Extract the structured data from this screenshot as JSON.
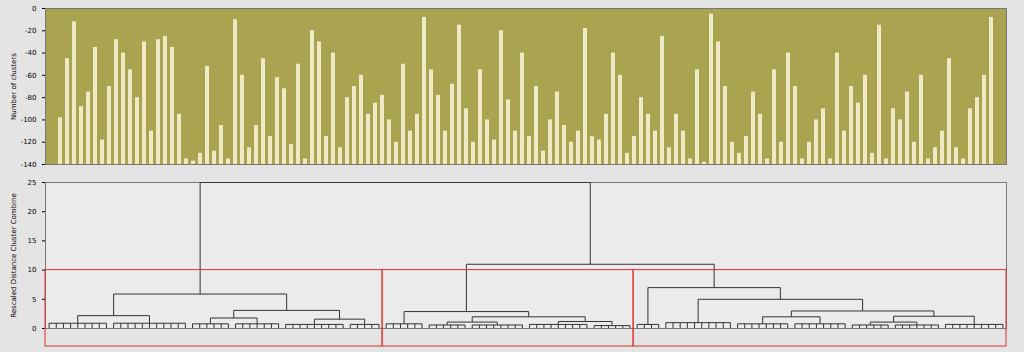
{
  "chart_data": [
    {
      "type": "bar",
      "y_label": "Number of clusters",
      "values": [
        -98,
        -45,
        -12,
        -88,
        -75,
        -35,
        -118,
        -70,
        -28,
        -40,
        -55,
        -80,
        -30,
        -110,
        -28,
        -25,
        -35,
        -95,
        -135,
        -137,
        -130,
        -52,
        -128,
        -105,
        -135,
        -10,
        -60,
        -125,
        -105,
        -45,
        -115,
        -62,
        -72,
        -122,
        -50,
        -135,
        -20,
        -30,
        -115,
        -40,
        -125,
        -80,
        -70,
        -60,
        -95,
        -85,
        -78,
        -100,
        -120,
        -50,
        -110,
        -95,
        -8,
        -55,
        -78,
        -110,
        -68,
        -15,
        -90,
        -120,
        -55,
        -100,
        -118,
        -20,
        -82,
        -110,
        -40,
        -115,
        -70,
        -128,
        -100,
        -75,
        -105,
        -120,
        -110,
        -18,
        -115,
        -118,
        -95,
        -40,
        -60,
        -130,
        -115,
        -80,
        -95,
        -110,
        -25,
        -125,
        -95,
        -110,
        -135,
        -55,
        -138,
        -5,
        -30,
        -70,
        -120,
        -130,
        -115,
        -75,
        -95,
        -135,
        -55,
        -120,
        -40,
        -70,
        -135,
        -120,
        -100,
        -90,
        -135,
        -40,
        -110,
        -70,
        -85,
        -60,
        -130,
        -15,
        -135,
        -90,
        -100,
        -75,
        -120,
        -60,
        -135,
        -125,
        -110,
        -45,
        -125,
        -135,
        -90,
        -80,
        -60,
        -8
      ],
      "color": "#efe9c6",
      "ylim": [
        -140,
        0
      ],
      "yticks": [
        -140,
        -120,
        -100,
        -80,
        -60,
        -40,
        -20,
        0
      ],
      "tick_labels": "y"
    },
    {
      "type": "dendrogram",
      "y_label": "Rescaled Distance Cluster Combine",
      "ylim": [
        0,
        25
      ],
      "yticks": [
        0,
        5,
        10,
        15,
        20,
        25
      ],
      "color": "#333333",
      "tick_labels": "y",
      "tree": {
        "h": 25,
        "c": [
          {
            "h": 5.9,
            "box": true,
            "c": [
              {
                "h": 2.2,
                "c": [
                  {
                    "h": 0.9,
                    "n": 9
                  },
                  {
                    "h": 0.9,
                    "n": 11
                  }
                ]
              },
              {
                "h": 3.1,
                "c": [
                  {
                    "h": 1.8,
                    "c": [
                      {
                        "h": 0.8,
                        "n": 6
                      },
                      {
                        "h": 0.8,
                        "n": 7
                      }
                    ]
                  },
                  {
                    "h": 1.6,
                    "c": [
                      {
                        "h": 0.7,
                        "n": 9
                      },
                      {
                        "h": 0.7,
                        "n": 5
                      }
                    ]
                  }
                ]
              }
            ]
          },
          {
            "h": 11,
            "c": [
              {
                "h": 2.9,
                "box": true,
                "c": [
                  {
                    "h": 0.8,
                    "n": 6
                  },
                  {
                    "h": 2.0,
                    "c": [
                      {
                        "h": 1.1,
                        "c": [
                          {
                            "h": 0.6,
                            "n": 6
                          },
                          {
                            "h": 0.6,
                            "n": 8
                          }
                        ]
                      },
                      {
                        "h": 1.2,
                        "c": [
                          {
                            "h": 0.7,
                            "n": 9
                          },
                          {
                            "h": 0.5,
                            "n": 6
                          }
                        ]
                      }
                    ]
                  }
                ]
              },
              {
                "h": 7.0,
                "box": true,
                "c": [
                  {
                    "h": 0.7,
                    "n": 4
                  },
                  {
                    "h": 5.0,
                    "c": [
                      {
                        "h": 1.0,
                        "n": 10
                      },
                      {
                        "h": 3.0,
                        "c": [
                          {
                            "h": 2.0,
                            "c": [
                              {
                                "h": 0.8,
                                "n": 8
                              },
                              {
                                "h": 0.8,
                                "n": 8
                              }
                            ]
                          },
                          {
                            "h": 2.1,
                            "c": [
                              {
                                "h": 1.1,
                                "c": [
                                  {
                                    "h": 0.6,
                                    "n": 6
                                  },
                                  {
                                    "h": 0.6,
                                    "n": 7
                                  }
                                ]
                              },
                              {
                                "h": 0.7,
                                "n": 9
                              }
                            ]
                          }
                        ]
                      }
                    ]
                  }
                ]
              }
            ]
          }
        ]
      }
    }
  ]
}
